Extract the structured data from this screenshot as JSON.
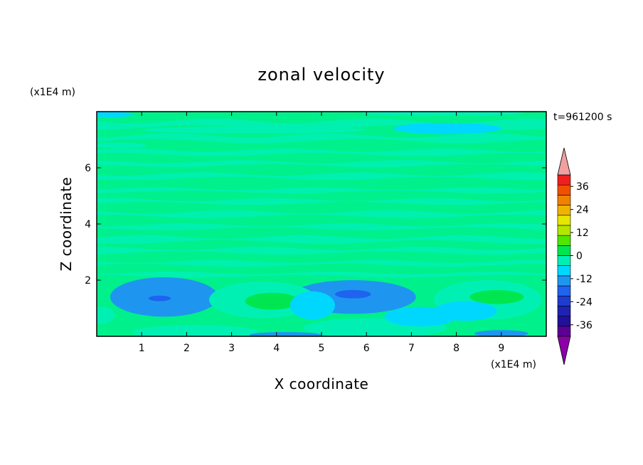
{
  "chart_data": {
    "type": "heatmap",
    "title": "zonal velocity",
    "xlabel": "X coordinate",
    "ylabel": "Z coordinate",
    "x_unit": "(x1E4 m)",
    "y_unit": "(x1E4 m)",
    "time_label": "t=961200 s",
    "xlim": [
      0,
      10
    ],
    "ylim": [
      0,
      8
    ],
    "x_ticks": [
      1,
      2,
      3,
      4,
      5,
      6,
      7,
      8,
      9
    ],
    "y_ticks": [
      2,
      4,
      6
    ],
    "colorbar": {
      "min": -42,
      "max": 42,
      "step": 6,
      "tick_values": [
        -36,
        -24,
        -12,
        0,
        12,
        24,
        36
      ],
      "tick_labels": [
        "-36",
        "-24",
        "-12",
        "0",
        "12",
        "24",
        "36"
      ],
      "colors": [
        "#5a0096",
        "#20109a",
        "#1e23b4",
        "#1e3cd2",
        "#1e64f0",
        "#1e96f0",
        "#00d7ff",
        "#00f0b4",
        "#00e650",
        "#50e600",
        "#b4e600",
        "#e6e600",
        "#f0b400",
        "#f08200",
        "#f05000",
        "#f01e1e"
      ],
      "under_color": "#8c00a8",
      "over_color": "#f0a0a0"
    },
    "field_base_color": "#00f08c",
    "features": [
      {
        "x": 1.5,
        "z": 1.4,
        "rx": 1.2,
        "rz": 0.7,
        "value": -8
      },
      {
        "x": 1.4,
        "z": 1.35,
        "rx": 0.6,
        "rz": 0.35,
        "value": -12
      },
      {
        "x": 1.4,
        "z": 1.35,
        "rx": 0.25,
        "rz": 0.1,
        "value": -15
      },
      {
        "x": 5.7,
        "z": 1.4,
        "rx": 1.4,
        "rz": 0.6,
        "value": -8
      },
      {
        "x": 5.9,
        "z": 1.5,
        "rx": 0.8,
        "rz": 0.4,
        "value": -12
      },
      {
        "x": 5.7,
        "z": 1.5,
        "rx": 0.4,
        "rz": 0.15,
        "value": -15
      },
      {
        "x": 3.7,
        "z": 1.3,
        "rx": 1.2,
        "rz": 0.65,
        "value": 3
      },
      {
        "x": 3.9,
        "z": 1.25,
        "rx": 0.6,
        "rz": 0.3,
        "value": 8
      },
      {
        "x": 8.7,
        "z": 1.3,
        "rx": 1.2,
        "rz": 0.7,
        "value": 3
      },
      {
        "x": 8.9,
        "z": 1.4,
        "rx": 0.6,
        "rz": 0.25,
        "value": 8
      },
      {
        "x": 2.2,
        "z": 0.15,
        "rx": 1.4,
        "rz": 0.25,
        "value": 3
      },
      {
        "x": 6.2,
        "z": 0.3,
        "rx": 1.6,
        "rz": 0.35,
        "value": 3
      },
      {
        "x": 0.1,
        "z": 0.75,
        "rx": 0.3,
        "rz": 0.3,
        "value": 3
      },
      {
        "x": 4.2,
        "z": 0.05,
        "rx": 0.8,
        "rz": 0.1,
        "value": -8
      },
      {
        "x": 9.0,
        "z": 0.1,
        "rx": 0.6,
        "rz": 0.12,
        "value": -8
      },
      {
        "x": 4.8,
        "z": 1.1,
        "rx": 0.5,
        "rz": 0.5,
        "value": -3
      },
      {
        "x": 7.2,
        "z": 0.7,
        "rx": 0.8,
        "rz": 0.35,
        "value": -3
      },
      {
        "x": 8.2,
        "z": 0.9,
        "rx": 0.7,
        "rz": 0.35,
        "value": -3
      },
      {
        "x": 3.5,
        "z": 7.35,
        "rx": 2.5,
        "rz": 0.12,
        "value": 3
      },
      {
        "x": 7.7,
        "z": 7.95,
        "rx": 1.8,
        "rz": 0.1,
        "value": 3
      },
      {
        "x": 0.5,
        "z": 6.8,
        "rx": 0.6,
        "rz": 0.1,
        "value": 3
      },
      {
        "x": 7.8,
        "z": 7.4,
        "rx": 1.2,
        "rz": 0.2,
        "value": -3
      },
      {
        "x": 0.3,
        "z": 7.9,
        "rx": 0.5,
        "rz": 0.1,
        "value": -3
      }
    ]
  }
}
